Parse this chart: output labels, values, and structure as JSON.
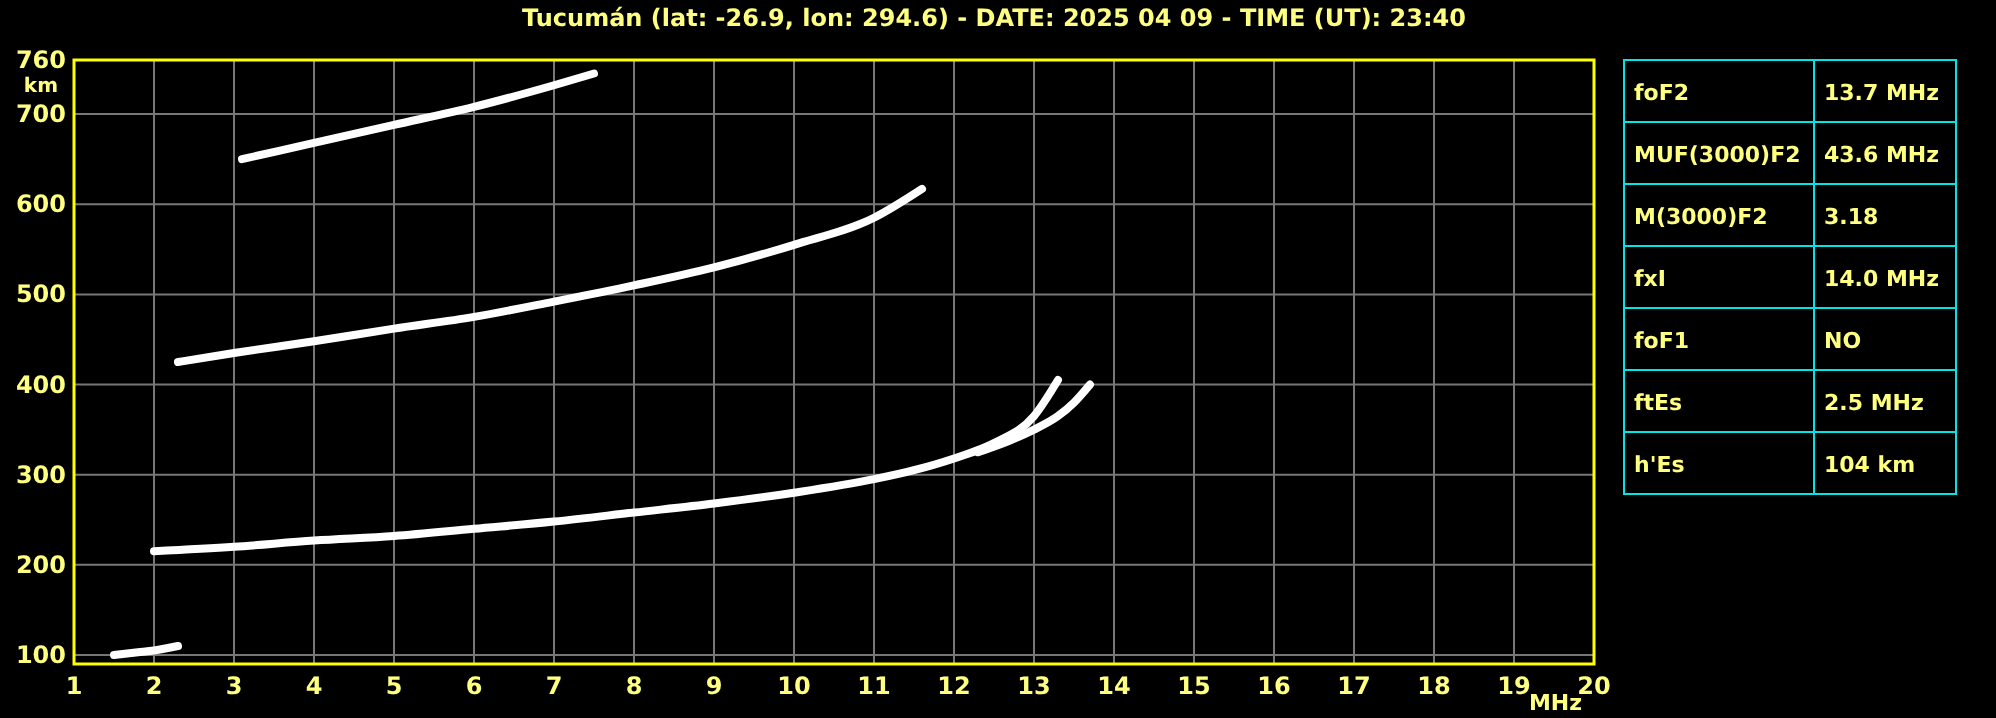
{
  "chart_data": [
    {
      "type": "line",
      "title": "Tucumán (lat: -26.9, lon: 294.6) - DATE: 2025 04 09 - TIME (UT): 23:40",
      "xlabel": "MHz",
      "ylabel": "km",
      "xlim": [
        1,
        20
      ],
      "ylim": [
        90,
        760
      ],
      "xticks": [
        1,
        2,
        3,
        4,
        5,
        6,
        7,
        8,
        9,
        10,
        11,
        12,
        13,
        14,
        15,
        16,
        17,
        18,
        19,
        20
      ],
      "yticks": [
        100,
        200,
        300,
        400,
        500,
        600,
        700,
        760
      ],
      "grid": true,
      "marker": "none",
      "line_style": "solid",
      "series": [
        {
          "color": "#ffffff",
          "x": [
            1.5,
            1.8,
            2.0,
            2.3
          ],
          "values": [
            100,
            103,
            105,
            110
          ]
        },
        {
          "color": "#ffffff",
          "x": [
            2.0,
            3,
            4,
            5,
            6,
            7,
            8,
            9,
            10,
            11,
            11.5,
            12,
            12.5,
            13,
            13.3
          ],
          "values": [
            215,
            220,
            227,
            232,
            240,
            248,
            258,
            268,
            280,
            295,
            305,
            318,
            335,
            365,
            405
          ]
        },
        {
          "color": "#ffffff",
          "x": [
            12.3,
            12.7,
            13,
            13.3,
            13.5,
            13.7
          ],
          "values": [
            325,
            338,
            350,
            365,
            380,
            400
          ]
        },
        {
          "color": "#ffffff",
          "x": [
            2.3,
            3,
            4,
            5,
            6,
            7,
            8,
            9,
            10,
            11,
            11.6
          ],
          "values": [
            425,
            435,
            448,
            462,
            475,
            492,
            510,
            530,
            555,
            585,
            617
          ]
        },
        {
          "color": "#ffffff",
          "x": [
            3.1,
            4,
            5,
            6,
            7,
            7.5
          ],
          "values": [
            650,
            668,
            688,
            708,
            732,
            745
          ]
        }
      ]
    },
    {
      "type": "other",
      "annotations": [
        "foF2",
        "13.7 MHz",
        "MUF(3000)F2",
        "43.6 MHz",
        "M(3000)F2",
        "3.18",
        "fxI",
        "14.0 MHz",
        "foF1",
        "NO",
        "ftEs",
        "2.5 MHz",
        "h'Es",
        "104 km"
      ]
    }
  ]
}
